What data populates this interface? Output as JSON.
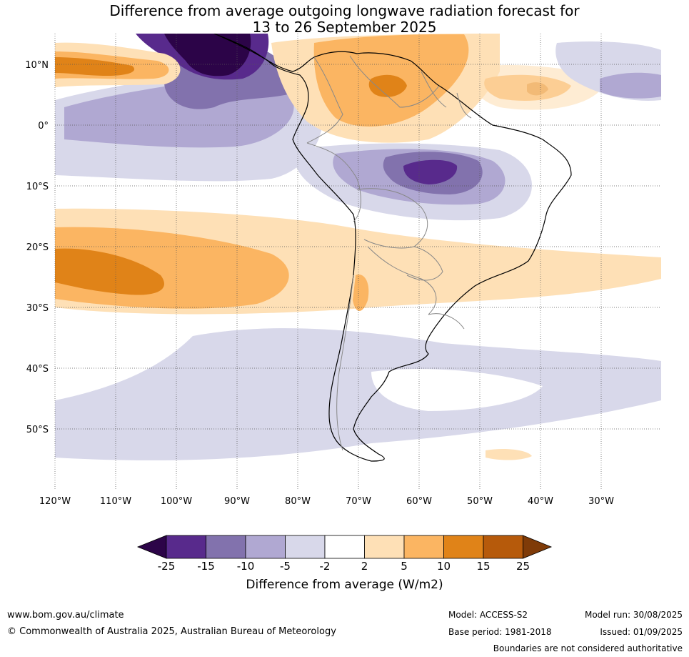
{
  "title": {
    "line1": "Difference from average outgoing longwave radiation forecast for",
    "line2": "13 to 26 September 2025"
  },
  "map": {
    "lat_labels": [
      "10°N",
      "0°",
      "10°S",
      "20°S",
      "30°S",
      "40°S",
      "50°S"
    ],
    "lon_labels": [
      "120°W",
      "110°W",
      "100°W",
      "90°W",
      "80°W",
      "70°W",
      "60°W",
      "50°W",
      "40°W",
      "30°W"
    ],
    "region": "South America"
  },
  "colorbar": {
    "label": "Difference from average (W/m2)",
    "ticks": [
      "-25",
      "-15",
      "-10",
      "-5",
      "-2",
      "2",
      "5",
      "10",
      "15",
      "25"
    ],
    "colors": {
      "below_min": "#2c0448",
      "neg_25_15": "#582a8c",
      "neg_15_10": "#8272ad",
      "neg_10_5": "#b0a8d2",
      "neg_5_2": "#d8d8ea",
      "neutral": "#ffffff",
      "pos_2_5": "#fee0b6",
      "pos_5_10": "#fbb562",
      "pos_10_15": "#e08318",
      "pos_15_25": "#b65a0b",
      "above_max": "#7f3b08"
    }
  },
  "footer": {
    "website": "www.bom.gov.au/climate",
    "copyright": "© Commonwealth of Australia 2025, Australian Bureau of Meteorology",
    "model": "Model: ACCESS-S2",
    "base_period": "Base period: 1981-2018",
    "model_run": "Model run: 30/08/2025",
    "issued": "Issued: 01/09/2025",
    "boundaries": "Boundaries are not considered authoritative"
  }
}
